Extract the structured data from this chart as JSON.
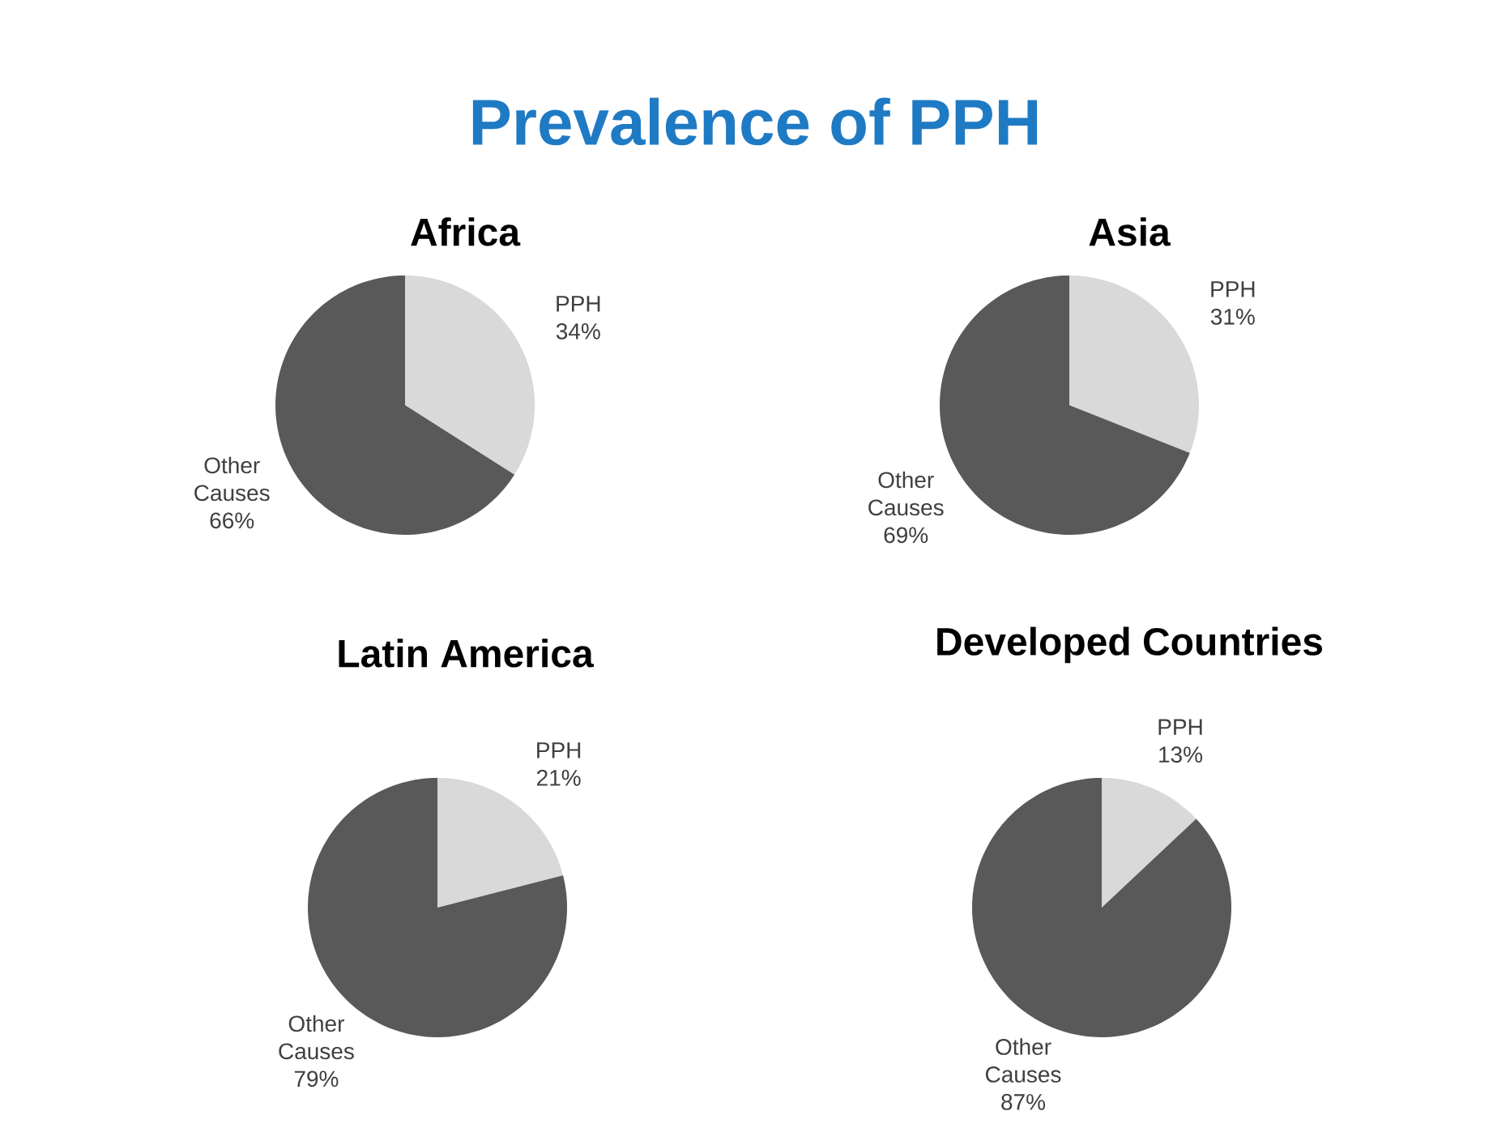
{
  "chart_data": [
    {
      "type": "other",
      "title": "Prevalence of PPH"
    },
    {
      "type": "pie",
      "title": "Africa",
      "categories": [
        "PPH",
        "Other Causes"
      ],
      "values": [
        34,
        66
      ],
      "colors": [
        "#d9d9d9",
        "#595959"
      ],
      "value_labels": [
        "34%",
        "66%"
      ]
    },
    {
      "type": "pie",
      "title": "Asia",
      "categories": [
        "PPH",
        "Other Causes"
      ],
      "values": [
        31,
        69
      ],
      "colors": [
        "#d9d9d9",
        "#595959"
      ],
      "value_labels": [
        "31%",
        "69%"
      ]
    },
    {
      "type": "pie",
      "title": "Latin America",
      "categories": [
        "PPH",
        "Other Causes"
      ],
      "values": [
        21,
        79
      ],
      "colors": [
        "#d9d9d9",
        "#595959"
      ],
      "value_labels": [
        "21%",
        "79%"
      ]
    },
    {
      "type": "pie",
      "title": "Developed Countries",
      "categories": [
        "PPH",
        "Other Causes"
      ],
      "values": [
        13,
        87
      ],
      "colors": [
        "#d9d9d9",
        "#595959"
      ],
      "value_labels": [
        "13%",
        "87%"
      ]
    }
  ]
}
